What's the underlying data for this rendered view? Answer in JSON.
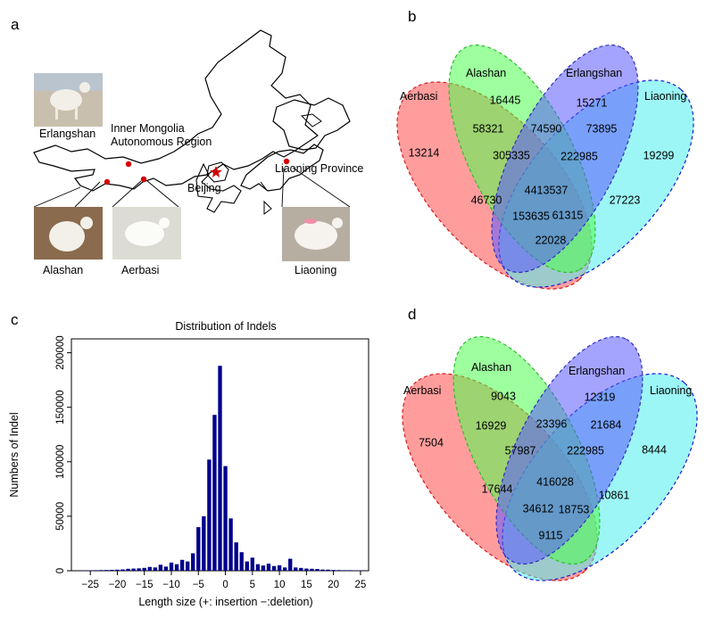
{
  "figure": {
    "panel_letters": {
      "a": "a",
      "b": "b",
      "c": "c",
      "d": "d"
    }
  },
  "map": {
    "labels": {
      "erlangshan": "Erlangshan",
      "inner_mongolia_1": "Inner Mongolia",
      "inner_mongolia_2": "Autonomous Region",
      "beijing": "Beijing",
      "liaoning_province": "Liaoning Province",
      "alashan": "Alashan",
      "aerbasi": "Aerbasi",
      "liaoning": "Liaoning"
    },
    "colors": {
      "site_dot": "#d40000",
      "star": "#d40000",
      "photo_fill": "#c9bfae"
    }
  },
  "venn_b": {
    "set_labels": {
      "aerbasi": "Aerbasi",
      "alashan": "Alashan",
      "erlangshan": "Erlangshan",
      "liaoning": "Liaoning"
    },
    "regions": {
      "aerbasi_only": "13214",
      "alashan_only": "16445",
      "erlangshan_only": "15271",
      "liaoning_only": "19299",
      "aerbasi_alashan": "58321",
      "alashan_erlangshan": "74590",
      "erlangshan_liaoning": "73895",
      "aerbasi_alashan_erlangshan": "305335",
      "alashan_erlangshan_liaoning": "222985",
      "all_four": "4413537",
      "aerbasi_erlangshan": "46730",
      "alashan_liaoning": "27223",
      "aerbasi_erlangshan_liaoning": "153635",
      "aerbasi_alashan_liaoning": "61315",
      "aerbasi_liaoning": "22028"
    }
  },
  "venn_d": {
    "set_labels": {
      "aerbasi": "Aerbasi",
      "alashan": "Alashan",
      "erlangshan": "Erlangshan",
      "liaoning": "Liaoning"
    },
    "regions": {
      "aerbasi_only": "7504",
      "alashan_only": "9043",
      "erlangshan_only": "12319",
      "liaoning_only": "8444",
      "aerbasi_alashan": "16929",
      "alashan_erlangshan": "23396",
      "erlangshan_liaoning": "21684",
      "aerbasi_alashan_erlangshan": "57987",
      "alashan_erlangshan_liaoning": "222985",
      "all_four": "416028",
      "aerbasi_erlangshan": "17644",
      "alashan_liaoning": "10861",
      "aerbasi_erlangshan_liaoning": "34612",
      "aerbasi_alashan_liaoning": "18753",
      "aerbasi_liaoning": "9115"
    }
  },
  "venn_colors": {
    "aerbasi": "#ff4d4d",
    "alashan": "#4dff4d",
    "erlangshan": "#5a5aff",
    "liaoning": "#4deeee"
  },
  "chart_data": {
    "type": "bar",
    "title": "Distribution of Indels",
    "xlabel": "Length size (+: insertion −:deletion)",
    "ylabel": "Numbers of Indel",
    "x": [
      -26,
      -25,
      -24,
      -23,
      -22,
      -21,
      -20,
      -19,
      -18,
      -17,
      -16,
      -15,
      -14,
      -13,
      -12,
      -11,
      -10,
      -9,
      -8,
      -7,
      -6,
      -5,
      -4,
      -3,
      -2,
      -1,
      0,
      1,
      2,
      3,
      4,
      5,
      6,
      7,
      8,
      9,
      10,
      11,
      12,
      13,
      14,
      15,
      16,
      17,
      18,
      19,
      20,
      21,
      22,
      23,
      24,
      25
    ],
    "values": [
      300,
      400,
      500,
      600,
      700,
      800,
      1000,
      1200,
      1800,
      2000,
      2200,
      2600,
      3500,
      3000,
      5500,
      3800,
      7500,
      6000,
      10000,
      8500,
      16000,
      40000,
      50000,
      102000,
      143000,
      188000,
      96000,
      48000,
      26000,
      17000,
      8500,
      12000,
      6000,
      4800,
      6500,
      4300,
      5000,
      3000,
      11000,
      3000,
      2600,
      2000,
      1800,
      1600,
      1100,
      1000,
      700,
      600,
      500,
      500,
      400,
      300
    ],
    "xticks": [
      -25,
      -20,
      -15,
      -10,
      -5,
      0,
      5,
      10,
      15,
      20,
      25
    ],
    "yticks": [
      0,
      50000,
      100000,
      150000,
      200000
    ],
    "xlim": [
      -28.5,
      26.5
    ],
    "ylim": [
      0,
      207000
    ],
    "bar_color": "#00008b"
  }
}
